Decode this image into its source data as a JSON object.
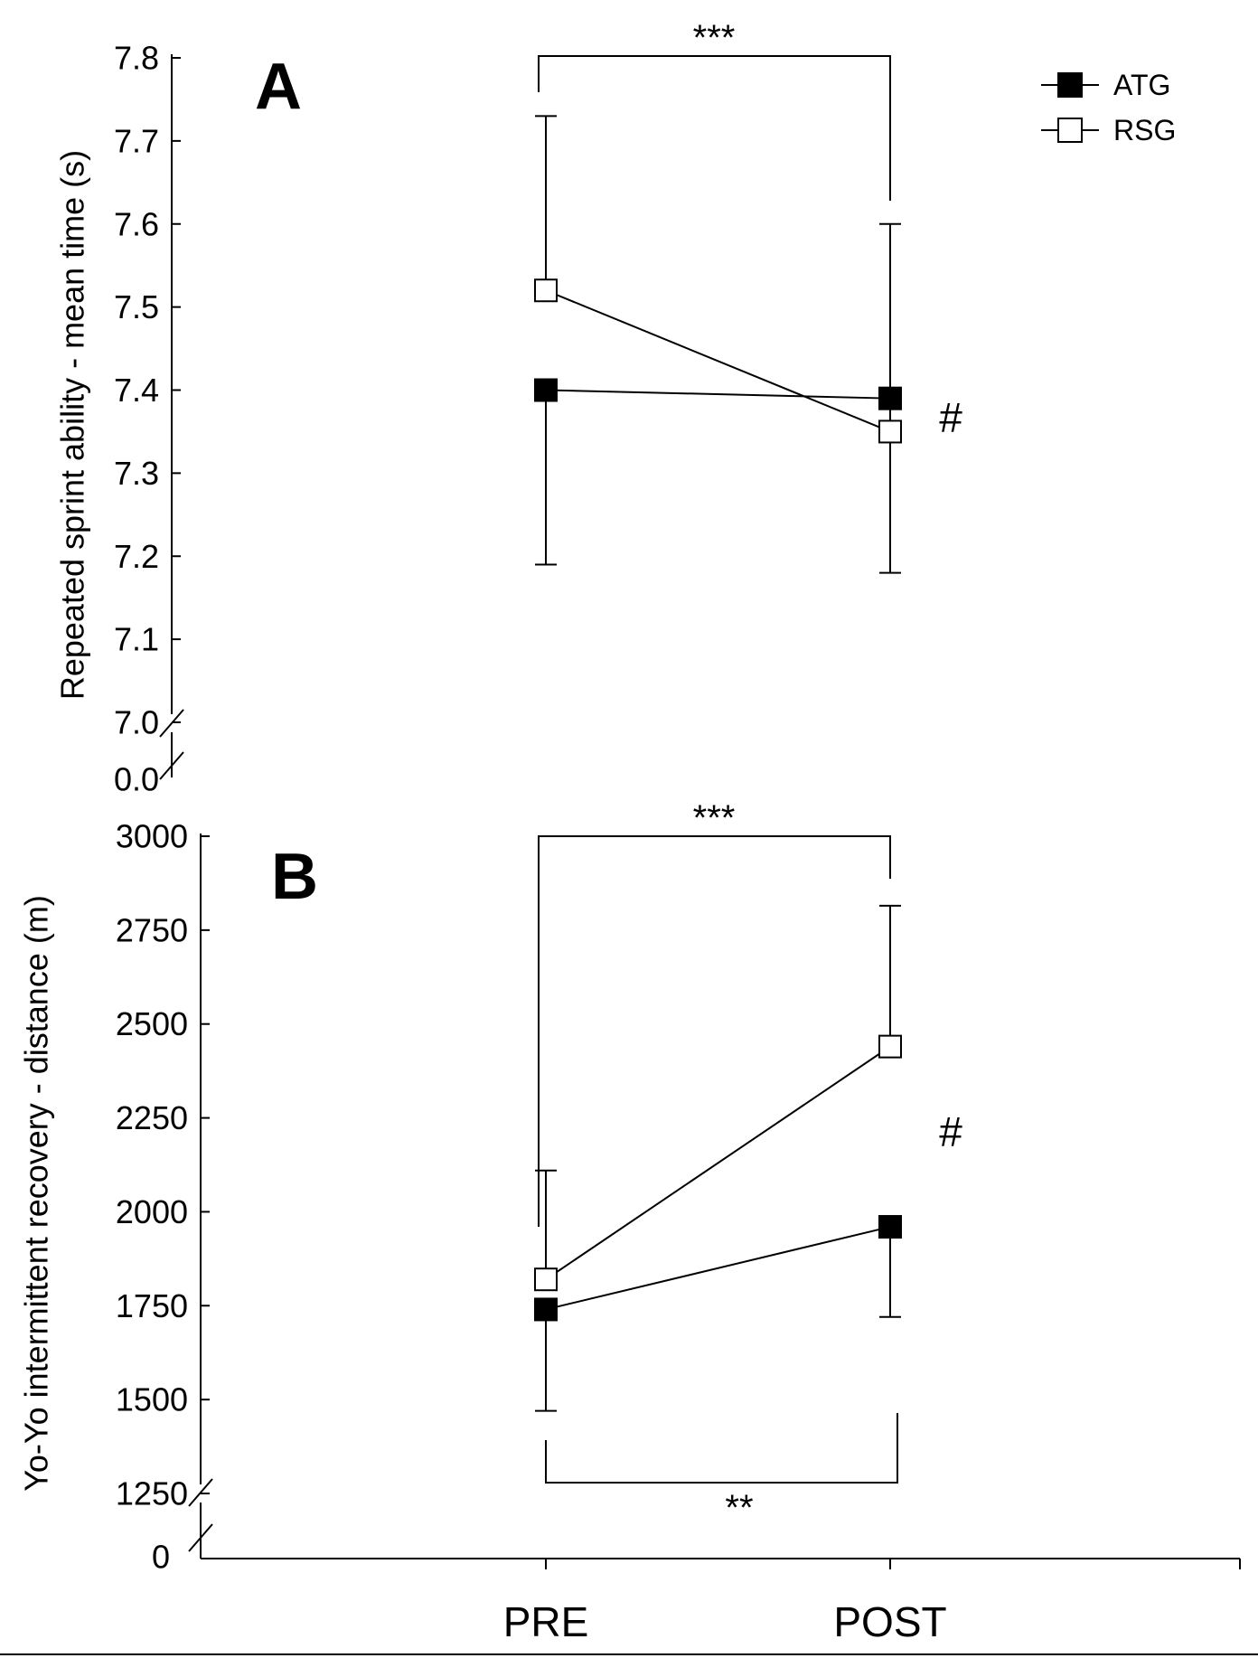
{
  "chart_data": [
    {
      "panel": "A",
      "type": "line",
      "ylabel": "Repeated sprint ability - mean time (s)",
      "categories": [
        "PRE",
        "POST"
      ],
      "ylim": [
        7.0,
        7.8
      ],
      "yticks": [
        "7.8",
        "7.7",
        "7.6",
        "7.5",
        "7.4",
        "7.3",
        "7.2",
        "7.1",
        "7.0"
      ],
      "ybreak_label": "0.0",
      "series": [
        {
          "name": "ATG",
          "values": [
            7.4,
            7.39
          ],
          "error_lower": [
            7.19,
            7.18
          ],
          "marker": "filled-square"
        },
        {
          "name": "RSG",
          "values": [
            7.52,
            7.35
          ],
          "error_upper": [
            7.73,
            7.6
          ],
          "marker": "open-square"
        }
      ],
      "annotations": {
        "top_bracket": "***",
        "hash": "#"
      }
    },
    {
      "panel": "B",
      "type": "line",
      "ylabel": "Yo-Yo intermittent recovery - distance (m)",
      "categories": [
        "PRE",
        "POST"
      ],
      "ylim": [
        1250,
        3000
      ],
      "yticks": [
        "3000",
        "2750",
        "2500",
        "2250",
        "2000",
        "1750",
        "1500",
        "1250"
      ],
      "ybreak_label": "0",
      "series": [
        {
          "name": "ATG",
          "values": [
            1740,
            1960
          ],
          "error_lower": [
            1470,
            1720
          ],
          "marker": "filled-square"
        },
        {
          "name": "RSG",
          "values": [
            1820,
            2440
          ],
          "error_upper": [
            2110,
            2815
          ],
          "marker": "open-square"
        }
      ],
      "annotations": {
        "top_bracket": "***",
        "bottom_bracket": "**",
        "hash": "#"
      }
    }
  ],
  "legend": [
    {
      "name": "ATG",
      "marker": "filled-square"
    },
    {
      "name": "RSG",
      "marker": "open-square"
    }
  ],
  "x_categories": [
    "PRE",
    "POST"
  ]
}
